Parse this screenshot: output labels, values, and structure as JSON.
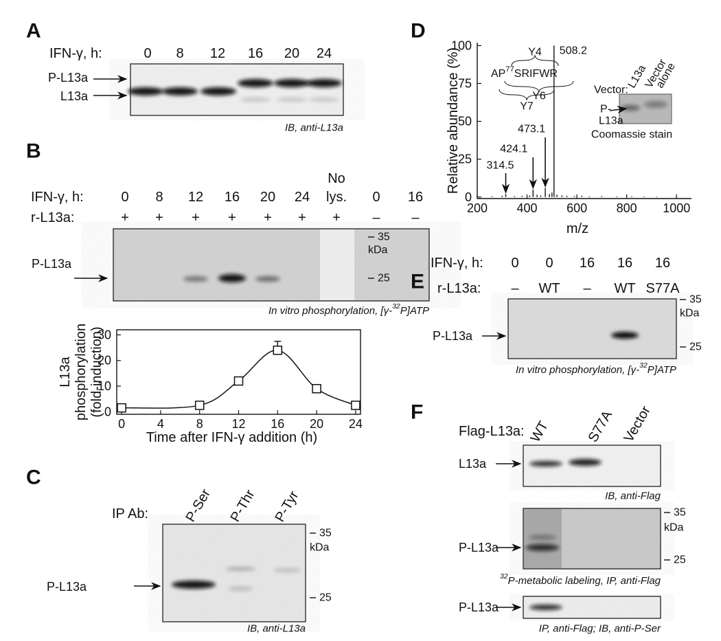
{
  "panelA": {
    "label": "A",
    "header": "IFN-γ, h:",
    "lanes": [
      "0",
      "8",
      "12",
      "16",
      "20",
      "24"
    ],
    "bands": [
      "P-L13a",
      "L13a"
    ],
    "caption": "IB, anti-L13a"
  },
  "panelB": {
    "label": "B",
    "header": "IFN-γ, h:",
    "lanes": [
      "0",
      "8",
      "12",
      "16",
      "20",
      "24",
      [
        "No",
        "lys."
      ],
      "0",
      "16"
    ],
    "row2_header": "r-L13a:",
    "row2": [
      "+",
      "+",
      "+",
      "+",
      "+",
      "+",
      "+",
      "–",
      "–"
    ],
    "band": "P-L13a",
    "markers": [
      "35",
      "kDa",
      "25"
    ],
    "caption": {
      "pre": "In vitro phosphorylation, [γ-",
      "sup": "32",
      "post": "P]ATP"
    }
  },
  "panelC": {
    "label": "C",
    "header": "IP Ab:",
    "lanes": [
      "P-Ser",
      "P-Thr",
      "P-Tyr"
    ],
    "band": "P-L13a",
    "markers": [
      "35",
      "kDa",
      "25"
    ],
    "caption": "IB, anti-L13a"
  },
  "panelD": {
    "label": "D",
    "sequence": {
      "pre": "AP",
      "sup": "77",
      "post": "SRIFWR"
    },
    "ions": [
      "Y4",
      "Y6",
      "Y7"
    ],
    "vector_header": "Vector:",
    "inset_lanes": [
      "L13a",
      [
        "Vector",
        "alone"
      ]
    ],
    "inset_band": [
      "P-",
      "L13a"
    ],
    "stain": "Coomassie stain"
  },
  "panelE": {
    "label": "E",
    "header": "IFN-γ, h:",
    "lanes": [
      "0",
      "0",
      "16",
      "16",
      "16"
    ],
    "row2_header": "r-L13a:",
    "row2": [
      "–",
      "WT",
      "–",
      "WT",
      "S77A"
    ],
    "band": "P-L13a",
    "markers": [
      "35",
      "kDa",
      "25"
    ],
    "caption": {
      "pre": "In vitro phosphorylation, [γ-",
      "sup": "32",
      "post": "P]ATP"
    }
  },
  "panelF": {
    "label": "F",
    "header": "Flag-L13a:",
    "lanes": [
      "WT",
      "S77A",
      "Vector"
    ],
    "blots": [
      {
        "band": "L13a",
        "caption": "IB, anti-Flag"
      },
      {
        "band": "P-L13a",
        "markers": [
          "35",
          "kDa",
          "25"
        ],
        "caption": {
          "sup": "32",
          "post": "P-metabolic labeling, IP, anti-Flag"
        }
      },
      {
        "band": "P-L13a",
        "caption": "IP, anti-Flag; IB, anti-P-Ser"
      }
    ]
  },
  "chart_data": [
    {
      "type": "line",
      "x": [
        0,
        8,
        12,
        16,
        20,
        24
      ],
      "series": [
        {
          "color": "#111111",
          "values": [
            1.5,
            2.5,
            12,
            24,
            9,
            2.5
          ],
          "errors": [
            1,
            0.8,
            1.5,
            3.5,
            1.5,
            1.2
          ]
        }
      ],
      "x_label": "Time after IFN-γ addition (h)",
      "y_label": [
        "L13a",
        "phosphorylation",
        "(fold-induction)"
      ],
      "xlim": [
        -0.5,
        24.5
      ],
      "ylim": [
        -1,
        32
      ],
      "xticks": [
        0,
        4,
        8,
        12,
        16,
        20,
        24
      ],
      "yticks": [
        0,
        10,
        20,
        30
      ]
    },
    {
      "type": "stem",
      "x": [
        314.5,
        424.1,
        473.1,
        508.2,
        260,
        300,
        350,
        380,
        410,
        440,
        455,
        490,
        500,
        520,
        540,
        560,
        590,
        620,
        650,
        700,
        760,
        820,
        870,
        920
      ],
      "values": [
        2,
        5,
        6,
        100,
        0.5,
        0.8,
        0.6,
        0.7,
        1,
        1.5,
        1,
        2,
        3,
        1.5,
        1,
        0.8,
        0.6,
        0.8,
        0.5,
        0.6,
        0.4,
        0.5,
        0.4,
        0.3
      ],
      "color": "#111111",
      "annotated": 4,
      "x_label": "m/z",
      "y_label": "Relative abundance (%)",
      "xlim": [
        200,
        1060
      ],
      "ylim": [
        -1,
        102
      ],
      "xticks": [
        200,
        400,
        600,
        800,
        1000
      ],
      "yticks": [
        0,
        25,
        50,
        75,
        100
      ]
    }
  ]
}
